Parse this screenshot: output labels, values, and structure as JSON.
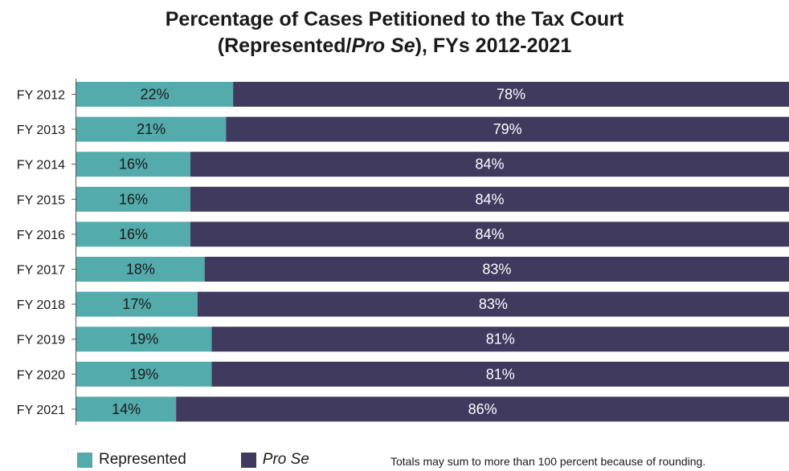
{
  "title": {
    "line1": "Percentage of Cases Petitioned to the Tax Court",
    "line2_prefix": "(Represented/",
    "line2_italic": "Pro Se",
    "line2_suffix": "), FYs 2012-2021"
  },
  "colors": {
    "represented": "#54abab",
    "pro_se": "#3f3a5e",
    "label_on_represented": "#1a1a1a",
    "label_on_pro_se": "#ffffff"
  },
  "legend": {
    "represented": "Represented",
    "pro_se": "Pro Se"
  },
  "note": "Totals may sum to more than 100 percent because of rounding.",
  "chart_data": {
    "type": "bar",
    "orientation": "horizontal",
    "stacked": true,
    "title": "Percentage of Cases Petitioned to the Tax Court (Represented/Pro Se), FYs 2012-2021",
    "categories": [
      "FY 2012",
      "FY 2013",
      "FY 2014",
      "FY 2015",
      "FY 2016",
      "FY 2017",
      "FY 2018",
      "FY 2019",
      "FY 2020",
      "FY 2021"
    ],
    "series": [
      {
        "name": "Represented",
        "values": [
          22,
          21,
          16,
          16,
          16,
          18,
          17,
          19,
          19,
          14
        ],
        "labels": [
          "22%",
          "21%",
          "16%",
          "16%",
          "16%",
          "18%",
          "17%",
          "19%",
          "19%",
          "14%"
        ]
      },
      {
        "name": "Pro Se",
        "values": [
          78,
          79,
          84,
          84,
          84,
          83,
          83,
          81,
          81,
          86
        ],
        "labels": [
          "78%",
          "79%",
          "84%",
          "84%",
          "84%",
          "83%",
          "83%",
          "81%",
          "81%",
          "86%"
        ]
      }
    ],
    "xlim": [
      0,
      100
    ],
    "grid": false,
    "legend_position": "bottom-left"
  }
}
